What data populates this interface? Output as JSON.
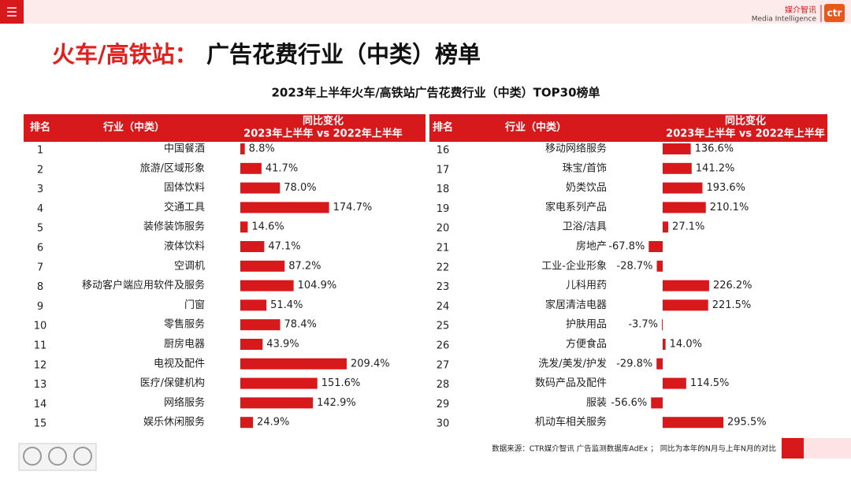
{
  "header": {
    "brand": "媒介智讯",
    "brand_en": "Media Intelligence",
    "logo": "ctr"
  },
  "title_red": "火车/高铁站：",
  "title_black": "广告花费行业（中类）榜单",
  "subtitle": "2023年上半年火车/高铁站广告花费行业（中类）TOP30榜单",
  "columns": [
    "排名",
    "行业（中类）",
    "同比变化",
    "2023年上半年 vs 2022年上半年"
  ],
  "panels": [
    {
      "ranks": [
        "1",
        "2",
        "3",
        "4",
        "5",
        "6",
        "7",
        "8",
        "9",
        "10",
        "11",
        "12",
        "13",
        "14",
        "15"
      ],
      "industries": [
        "中国餐酒",
        "旅游/区域形象",
        "固体饮料",
        "交通工具",
        "装修装饰服务",
        "液体饮料",
        "空调机",
        "移动客户端应用软件及服务",
        "门窗",
        "零售服务",
        "厨房电器",
        "电视及配件",
        "医疗/保健机构",
        "网络服务",
        "娱乐休闲服务"
      ],
      "values": [
        8.8,
        41.7,
        78,
        174.7,
        14.6,
        47.1,
        87.2,
        104.9,
        51.4,
        78.4,
        43.9,
        209.4,
        151.6,
        142.9,
        24.9
      ],
      "value_labels": [
        "8.8%",
        "41.7%",
        "78.0%",
        "174.7%",
        "14.6%",
        "47.1%",
        "87.2%",
        "104.9%",
        "51.4%",
        "78.4%",
        "43.9%",
        "209.4%",
        "151.6%",
        "142.9%",
        "24.9%"
      ]
    },
    {
      "ranks": [
        "16",
        "17",
        "18",
        "19",
        "20",
        "21",
        "22",
        "23",
        "24",
        "25",
        "26",
        "27",
        "28",
        "29",
        "30"
      ],
      "industries": [
        "移动网络服务",
        "珠宝/首饰",
        "奶类饮品",
        "家电系列产品",
        "卫浴/洁具",
        "房地产",
        "工业-企业形象",
        "儿科用药",
        "家居清洁电器",
        "护肤用品",
        "方便食品",
        "洗发/美发/护发",
        "数码产品及配件",
        "服装",
        "机动车相关服务"
      ],
      "values": [
        136.6,
        141.2,
        193.6,
        210.1,
        27.1,
        -67.8,
        -28.7,
        226.2,
        221.5,
        -3.7,
        14,
        -29.8,
        114.5,
        -56.6,
        295.5
      ],
      "value_labels": [
        "136.6%",
        "141.2%",
        "193.6%",
        "210.1%",
        "27.1%",
        "-67.8%",
        "-28.7%",
        "226.2%",
        "221.5%",
        "-3.7%",
        "14.0%",
        "-29.8%",
        "114.5%",
        "-56.6%",
        "295.5%"
      ]
    }
  ],
  "color": "#d7191c",
  "source": "数据来源：CTR媒介智讯 广告监测数据库AdEx ； 同比为本年的N月与上年N月的对比"
}
